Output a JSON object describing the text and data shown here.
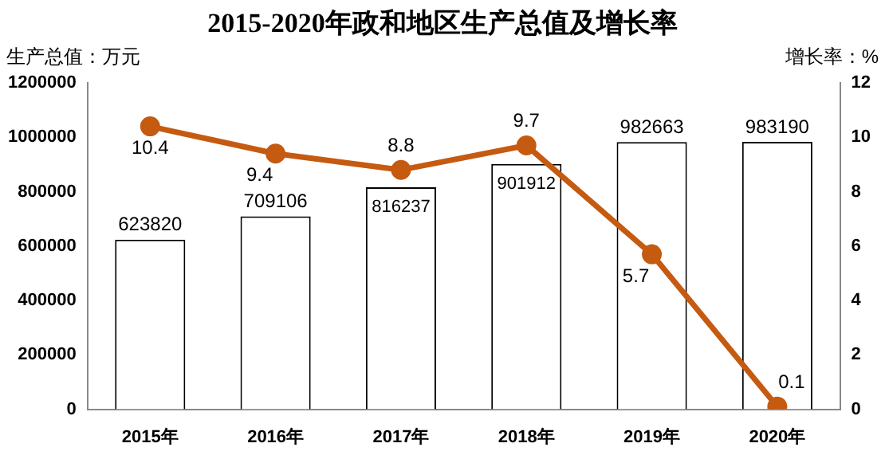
{
  "chart_data": {
    "type": "bar",
    "title": "2015-2020年政和地区生产总值及增长率",
    "ylabel": "生产总值：万元",
    "y2label": "增长率：%",
    "categories": [
      "2015年",
      "2016年",
      "2017年",
      "2018年",
      "2019年",
      "2020年"
    ],
    "series": [
      {
        "color": "#ffffff",
        "values": [
          623820,
          709106,
          816237,
          901912,
          982663,
          983190
        ]
      },
      {
        "type": "line",
        "axis": "y2",
        "color": "#c55a11",
        "marker": "circle",
        "values": [
          10.4,
          9.4,
          8.8,
          9.7,
          5.7,
          0.1
        ]
      }
    ],
    "ylim": [
      0,
      1200000
    ],
    "yticks": [
      0,
      200000,
      400000,
      600000,
      800000,
      1000000,
      1200000
    ],
    "y2lim": [
      0,
      12
    ],
    "y2ticks": [
      0,
      2,
      4,
      6,
      8,
      10,
      12
    ],
    "data_labels": true,
    "grid": false,
    "legend": false
  }
}
